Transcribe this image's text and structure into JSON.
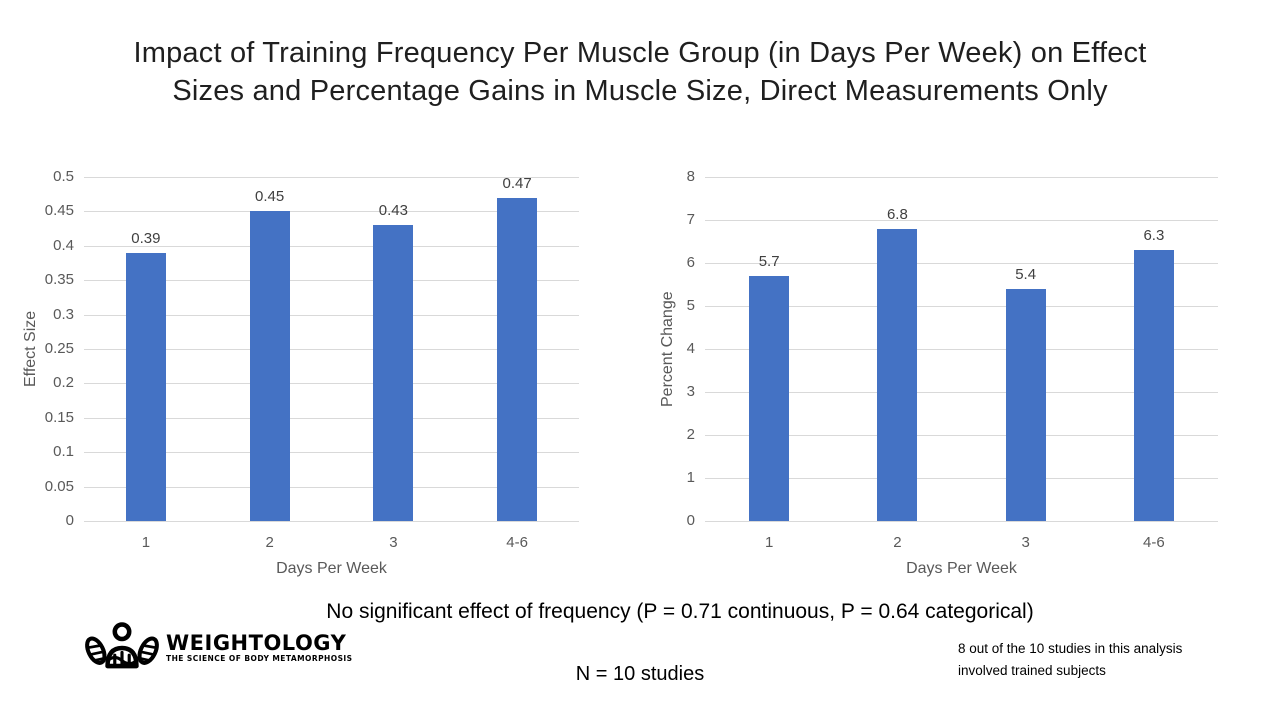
{
  "title": {
    "lines": [
      "Impact of Training Frequency Per Muscle Group (in Days Per Week) on Effect",
      "Sizes and Percentage Gains in Muscle Size, Direct Measurements Only"
    ]
  },
  "colors": {
    "bar": "#4472C4",
    "gridline": "#D9D9D9",
    "tick_text": "#595959",
    "value_label_text": "#404040",
    "title_text": "#1f1f1f",
    "note_text": "#000000"
  },
  "chart_data": [
    {
      "type": "bar",
      "title": "",
      "categories": [
        "1",
        "2",
        "3",
        "4-6"
      ],
      "values": [
        0.39,
        0.45,
        0.43,
        0.47
      ],
      "value_labels": [
        "0.39",
        "0.45",
        "0.43",
        "0.47"
      ],
      "xlabel": "Days Per Week",
      "ylabel": "Effect Size",
      "ylim": [
        0,
        0.5
      ],
      "yticks": [
        "0.5",
        "0.45",
        "0.4",
        "0.35",
        "0.3",
        "0.25",
        "0.2",
        "0.15",
        "0.1",
        "0.05",
        "0"
      ],
      "grid": true,
      "legend": "none"
    },
    {
      "type": "bar",
      "title": "",
      "categories": [
        "1",
        "2",
        "3",
        "4-6"
      ],
      "values": [
        5.7,
        6.8,
        5.4,
        6.3
      ],
      "value_labels": [
        "5.7",
        "6.8",
        "5.4",
        "6.3"
      ],
      "xlabel": "Days Per Week",
      "ylabel": "Percent Change",
      "ylim": [
        0,
        8
      ],
      "yticks": [
        "8",
        "7",
        "6",
        "5",
        "4",
        "3",
        "2",
        "1",
        "0"
      ],
      "grid": true,
      "legend": "none"
    }
  ],
  "footer": {
    "significance_note": "No significant effect of frequency (P = 0.71 continuous, P = 0.64 categorical)",
    "sample_note": "N = 10 studies",
    "trained_note": "8 out of the 10 studies in this analysis involved trained subjects"
  },
  "logo": {
    "name": "WEIGHTOLOGY",
    "tagline": "THE SCIENCE OF BODY METAMORPHOSIS"
  }
}
